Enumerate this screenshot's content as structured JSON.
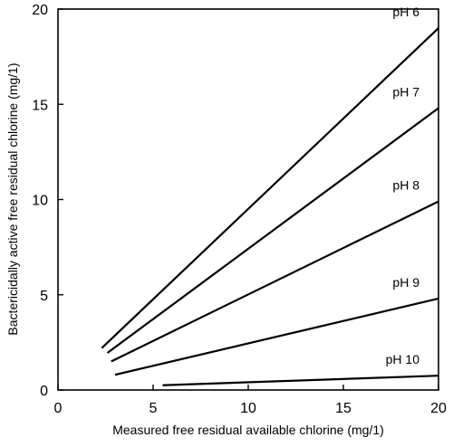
{
  "chart_data": {
    "type": "line",
    "title": "",
    "xlabel": "Measured free residual available chlorine (mg/1)",
    "ylabel": "Bactericidally active free residual chlorine (mg/1)",
    "xlim": [
      0,
      20
    ],
    "ylim": [
      0,
      20
    ],
    "xticks": [
      0,
      5,
      10,
      15,
      20
    ],
    "yticks": [
      0,
      5,
      10,
      15,
      20
    ],
    "grid": false,
    "legend": "none",
    "line_color": "#000000",
    "series": [
      {
        "name": "pH 6",
        "x": [
          2.3,
          20
        ],
        "y": [
          2.2,
          19.0
        ]
      },
      {
        "name": "pH 7",
        "x": [
          2.6,
          20
        ],
        "y": [
          1.95,
          14.8
        ]
      },
      {
        "name": "pH 8",
        "x": [
          2.8,
          20
        ],
        "y": [
          1.5,
          9.9
        ]
      },
      {
        "name": "pH 9",
        "x": [
          3.0,
          20
        ],
        "y": [
          0.8,
          4.8
        ]
      },
      {
        "name": "pH 10",
        "x": [
          5.5,
          20
        ],
        "y": [
          0.25,
          0.75
        ]
      }
    ]
  }
}
